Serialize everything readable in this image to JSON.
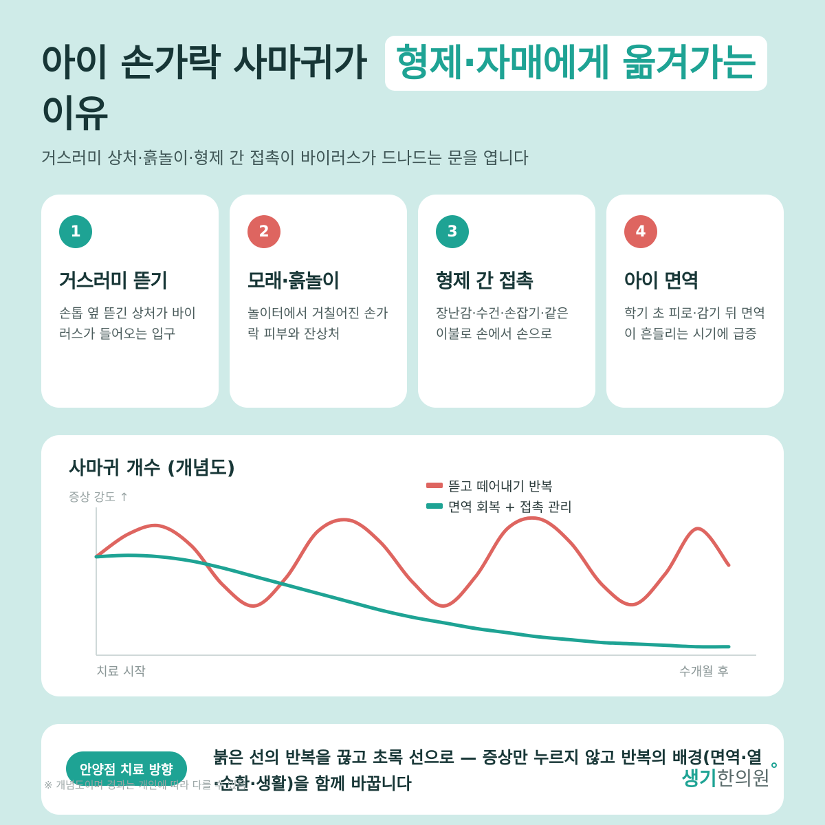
{
  "header": {
    "title_part1": "아이 손가락 사마귀가",
    "title_highlight": "형제·자매에게 옮겨가는",
    "title_part2": "이유",
    "subtitle": "거스러미 상처·흙놀이·형제 간 접촉이 바이러스가 드나드는 문을 엽니다"
  },
  "cards": [
    {
      "number": "1",
      "title": "거스러미 뜯기",
      "body": "손톱 옆 뜯긴 상처가 바이러스가 들어오는 입구",
      "color": "#1ea394"
    },
    {
      "number": "2",
      "title": "모래·흙놀이",
      "body": "놀이터에서 거칠어진 손가락 피부와 잔상처",
      "color": "#de6560"
    },
    {
      "number": "3",
      "title": "형제 간 접촉",
      "body": "장난감·수건·손잡기·같은 이불로 손에서 손으로",
      "color": "#1ea394"
    },
    {
      "number": "4",
      "title": "아이 면역",
      "body": "학기 초 피로·감기 뒤 면역이 흔들리는 시기에 급증",
      "color": "#de6560"
    }
  ],
  "chart_data": {
    "type": "line",
    "title": "사마귀 개수 (개념도)",
    "ylabel": "증상 강도 ↑",
    "x_start_label": "치료 시작",
    "x_end_label": "수개월 후",
    "x": [
      0,
      0.5,
      1,
      1.5,
      2,
      2.5,
      3,
      3.5,
      4,
      4.5,
      5,
      5.5,
      6,
      6.5,
      7,
      7.5,
      8,
      8.5,
      9,
      9.5,
      10
    ],
    "series": [
      {
        "name": "뜯고 떼어내기 반복",
        "color": "#de6560",
        "values": [
          0.7,
          0.86,
          0.92,
          0.78,
          0.5,
          0.35,
          0.55,
          0.88,
          0.96,
          0.8,
          0.52,
          0.35,
          0.56,
          0.9,
          0.97,
          0.8,
          0.5,
          0.36,
          0.58,
          0.9,
          0.64
        ]
      },
      {
        "name": "면역 회복 + 접촉 관리",
        "color": "#1ea394",
        "values": [
          0.7,
          0.71,
          0.7,
          0.67,
          0.62,
          0.56,
          0.5,
          0.44,
          0.38,
          0.32,
          0.27,
          0.23,
          0.19,
          0.16,
          0.13,
          0.11,
          0.09,
          0.08,
          0.07,
          0.06,
          0.06
        ]
      }
    ],
    "ylim": [
      0,
      1.1
    ],
    "xlim": [
      0,
      10
    ],
    "grid": false,
    "legend": "top-center"
  },
  "bottom": {
    "pill": "안양점 치료 방향",
    "message": "붉은 선의 반복을 끊고 초록 선으로 — 증상만 누르지 않고 반복의 배경(면역·열·순환·생활)을 함께 바꿉니다",
    "note": "※ 개념도이며 경과는 개인에 따라 다를 수 있음",
    "logo_part1": "생기",
    "logo_part2": "한의원"
  }
}
